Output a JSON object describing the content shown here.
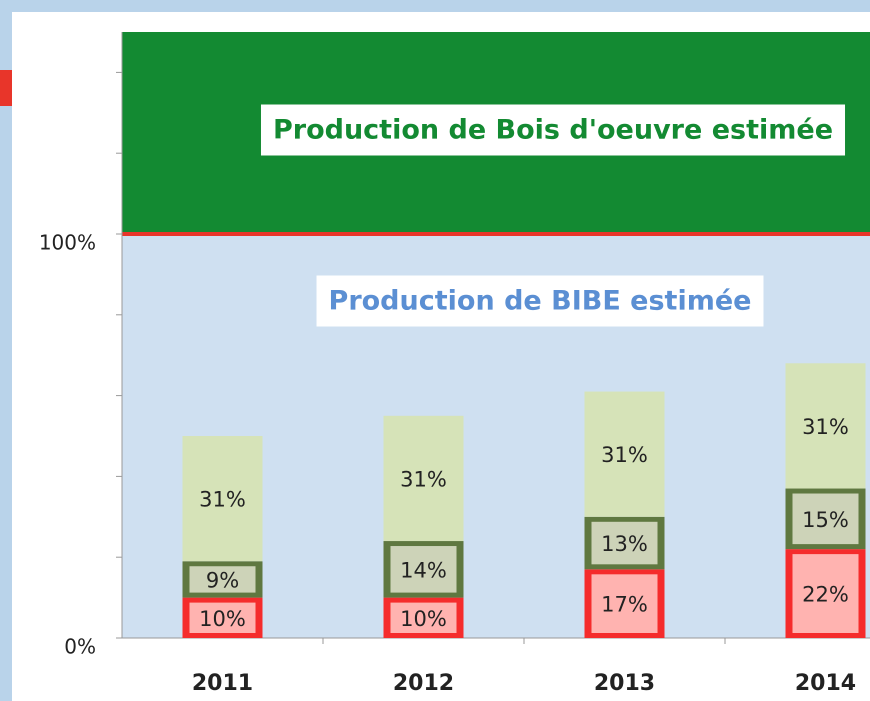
{
  "chart_data": {
    "type": "stacked_bar",
    "annotations": [
      "Production de Bois d'oeuvre estimée",
      "Production de BIBE estimée"
    ],
    "bands": [
      {
        "from": 100,
        "to": 150,
        "color": "#138a32",
        "text_color": "#138a32"
      },
      {
        "from": 0,
        "to": 100,
        "color": "#cfe0f1",
        "text_color": "#5b8fd3"
      }
    ],
    "reference_line": {
      "value": 100,
      "color": "#e8352a"
    },
    "categories": [
      "2011",
      "2012",
      "2013",
      "2014"
    ],
    "series": [
      {
        "color": "#f52c2c",
        "label_box": "#ffb3b0",
        "values": [
          10,
          10,
          17,
          22
        ],
        "value_labels": [
          "10%",
          "10%",
          "17%",
          "22%"
        ]
      },
      {
        "color": "#5f7840",
        "label_box": "#cdd3b8",
        "values": [
          9,
          14,
          13,
          15
        ],
        "value_labels": [
          "9%",
          "14%",
          "13%",
          "15%"
        ]
      },
      {
        "color": "#d6e3b8",
        "label_box": null,
        "values": [
          31,
          31,
          31,
          31
        ],
        "value_labels": [
          "31%",
          "31%",
          "31%",
          "31%"
        ]
      }
    ],
    "ylim": [
      0,
      150
    ],
    "yticks": [
      {
        "value": 0,
        "label": "0%"
      },
      {
        "value": 100,
        "label": "100%"
      }
    ],
    "yminor_ticks": [
      20,
      40,
      60,
      80,
      120,
      140
    ]
  }
}
